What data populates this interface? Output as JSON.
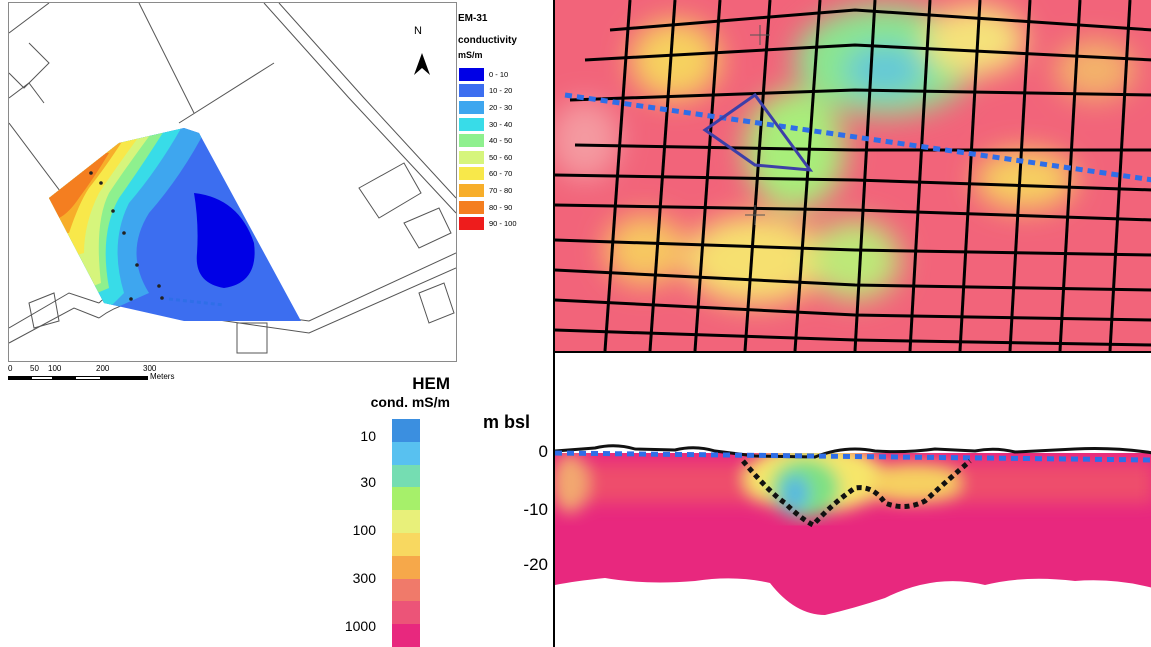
{
  "em31_map": {
    "north_label": "N",
    "legend_title_1": "EM-31",
    "legend_title_2": "conductivity",
    "legend_units": "mS/m",
    "legend_items": [
      {
        "label": "0 - 10",
        "color": "#0000e6"
      },
      {
        "label": "10 - 20",
        "color": "#3c6ef0"
      },
      {
        "label": "20 - 30",
        "color": "#3ea6ef"
      },
      {
        "label": "30 - 40",
        "color": "#38dce8"
      },
      {
        "label": "40 - 50",
        "color": "#8ef08e"
      },
      {
        "label": "50 - 60",
        "color": "#d6f57c"
      },
      {
        "label": "60 - 70",
        "color": "#f8e84a"
      },
      {
        "label": "70 - 80",
        "color": "#f7ae2a"
      },
      {
        "label": "80 - 90",
        "color": "#f47e20"
      },
      {
        "label": "90 - 100",
        "color": "#ee1c1c"
      }
    ],
    "scale": {
      "ticks": [
        "0",
        "50",
        "100",
        "200",
        "300"
      ],
      "unit": "Meters"
    }
  },
  "hem_legend": {
    "title": "HEM",
    "units": "cond. mS/m",
    "ticks": [
      "10",
      "30",
      "100",
      "300",
      "1000"
    ],
    "colors": [
      "#3b8fe0",
      "#58c1f0",
      "#75ddb2",
      "#a6f06a",
      "#e8f07a",
      "#f8d860",
      "#f6a84a",
      "#f07a6a",
      "#ec5478",
      "#e8287e"
    ]
  },
  "section": {
    "axis_label": "m bsl",
    "depth_ticks": [
      "0",
      "-10",
      "-20"
    ]
  },
  "colors": {
    "profile_line": "#2f6ee8",
    "outline": "#3d3fa8"
  }
}
